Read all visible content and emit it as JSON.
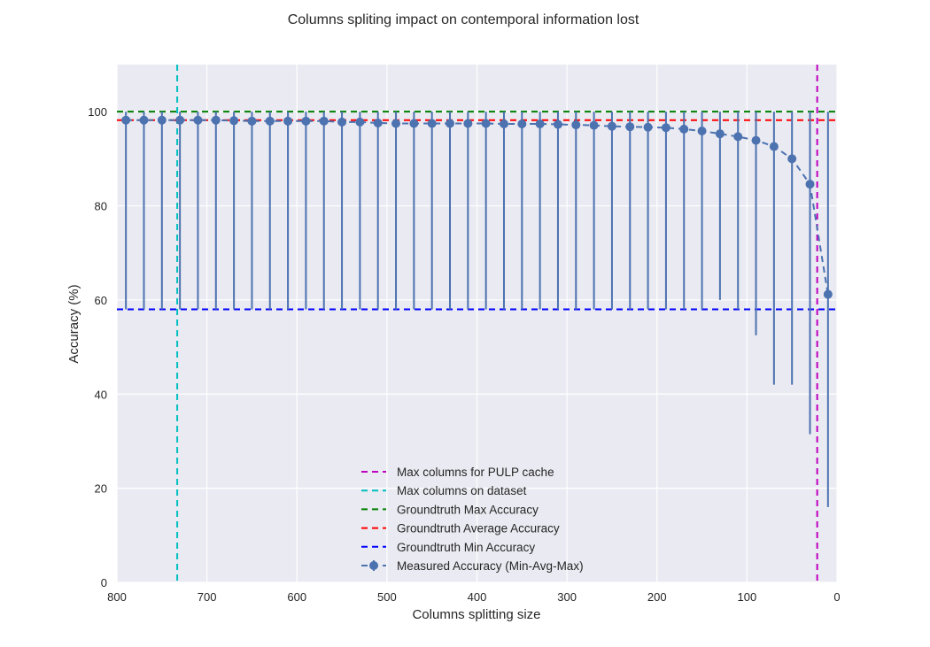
{
  "chart_data": {
    "type": "line",
    "title": "Columns spliting impact on contemporal information lost",
    "xlabel": "Columns splitting size",
    "ylabel": "Accuracy (%)",
    "xlim": [
      800,
      0
    ],
    "ylim": [
      0,
      110
    ],
    "x_ticks": [
      800,
      700,
      600,
      500,
      400,
      300,
      200,
      100,
      0
    ],
    "y_ticks": [
      0,
      20,
      40,
      60,
      80,
      100
    ],
    "grid": true,
    "legend_position": "lower-center",
    "reference_lines": [
      {
        "name": "Max columns for PULP cache",
        "orientation": "vertical",
        "value": 22,
        "color": "#bf00bf"
      },
      {
        "name": "Max columns on dataset",
        "orientation": "vertical",
        "value": 733,
        "color": "#00bfbf"
      },
      {
        "name": "Groundtruth Max Accuracy",
        "orientation": "horizontal",
        "value": 100,
        "color": "#008000"
      },
      {
        "name": "Groundtruth Average Accuracy",
        "orientation": "horizontal",
        "value": 98.2,
        "color": "#ff0000"
      },
      {
        "name": "Groundtruth Min Accuracy",
        "orientation": "horizontal",
        "value": 58,
        "color": "#0000ff"
      }
    ],
    "series": [
      {
        "name": "Measured Accuracy (Min-Avg-Max)",
        "color": "#4c72b0",
        "points": [
          {
            "x": 790,
            "avg": 98.2,
            "min": 58,
            "max": 100
          },
          {
            "x": 770,
            "avg": 98.2,
            "min": 58,
            "max": 100
          },
          {
            "x": 750,
            "avg": 98.2,
            "min": 58,
            "max": 100
          },
          {
            "x": 730,
            "avg": 98.2,
            "min": 58,
            "max": 100
          },
          {
            "x": 710,
            "avg": 98.2,
            "min": 58,
            "max": 100
          },
          {
            "x": 690,
            "avg": 98.2,
            "min": 58,
            "max": 100
          },
          {
            "x": 670,
            "avg": 98.1,
            "min": 58,
            "max": 100
          },
          {
            "x": 650,
            "avg": 98.0,
            "min": 58,
            "max": 100
          },
          {
            "x": 630,
            "avg": 98.0,
            "min": 58,
            "max": 100
          },
          {
            "x": 610,
            "avg": 98.0,
            "min": 58,
            "max": 100
          },
          {
            "x": 590,
            "avg": 98.0,
            "min": 58,
            "max": 100
          },
          {
            "x": 570,
            "avg": 98.0,
            "min": 58,
            "max": 100
          },
          {
            "x": 550,
            "avg": 97.8,
            "min": 58,
            "max": 100
          },
          {
            "x": 530,
            "avg": 97.8,
            "min": 58,
            "max": 100
          },
          {
            "x": 510,
            "avg": 97.6,
            "min": 58,
            "max": 100
          },
          {
            "x": 490,
            "avg": 97.5,
            "min": 58,
            "max": 100
          },
          {
            "x": 470,
            "avg": 97.5,
            "min": 58,
            "max": 100
          },
          {
            "x": 450,
            "avg": 97.5,
            "min": 58,
            "max": 100
          },
          {
            "x": 430,
            "avg": 97.5,
            "min": 58,
            "max": 100
          },
          {
            "x": 410,
            "avg": 97.5,
            "min": 58,
            "max": 100
          },
          {
            "x": 390,
            "avg": 97.5,
            "min": 58,
            "max": 100
          },
          {
            "x": 370,
            "avg": 97.4,
            "min": 58,
            "max": 100
          },
          {
            "x": 350,
            "avg": 97.4,
            "min": 58,
            "max": 100
          },
          {
            "x": 330,
            "avg": 97.4,
            "min": 58,
            "max": 100
          },
          {
            "x": 310,
            "avg": 97.3,
            "min": 58,
            "max": 100
          },
          {
            "x": 290,
            "avg": 97.2,
            "min": 58,
            "max": 100
          },
          {
            "x": 270,
            "avg": 97.1,
            "min": 58,
            "max": 100
          },
          {
            "x": 250,
            "avg": 96.9,
            "min": 58,
            "max": 100
          },
          {
            "x": 230,
            "avg": 96.8,
            "min": 58,
            "max": 100
          },
          {
            "x": 210,
            "avg": 96.7,
            "min": 58,
            "max": 100
          },
          {
            "x": 190,
            "avg": 96.6,
            "min": 58,
            "max": 100
          },
          {
            "x": 170,
            "avg": 96.3,
            "min": 58,
            "max": 100
          },
          {
            "x": 150,
            "avg": 95.9,
            "min": 58,
            "max": 100
          },
          {
            "x": 130,
            "avg": 95.3,
            "min": 60,
            "max": 100
          },
          {
            "x": 110,
            "avg": 94.7,
            "min": 58,
            "max": 100
          },
          {
            "x": 90,
            "avg": 93.9,
            "min": 52.5,
            "max": 100
          },
          {
            "x": 70,
            "avg": 92.6,
            "min": 42,
            "max": 100
          },
          {
            "x": 50,
            "avg": 90.0,
            "min": 42,
            "max": 100
          },
          {
            "x": 30,
            "avg": 84.6,
            "min": 31.5,
            "max": 100
          },
          {
            "x": 10,
            "avg": 61.2,
            "min": 16,
            "max": 100
          }
        ]
      }
    ],
    "legend_order": [
      "Max columns for PULP cache",
      "Max columns on dataset",
      "Groundtruth Max Accuracy",
      "Groundtruth Average Accuracy",
      "Groundtruth Min Accuracy",
      "Measured Accuracy (Min-Avg-Max)"
    ]
  }
}
